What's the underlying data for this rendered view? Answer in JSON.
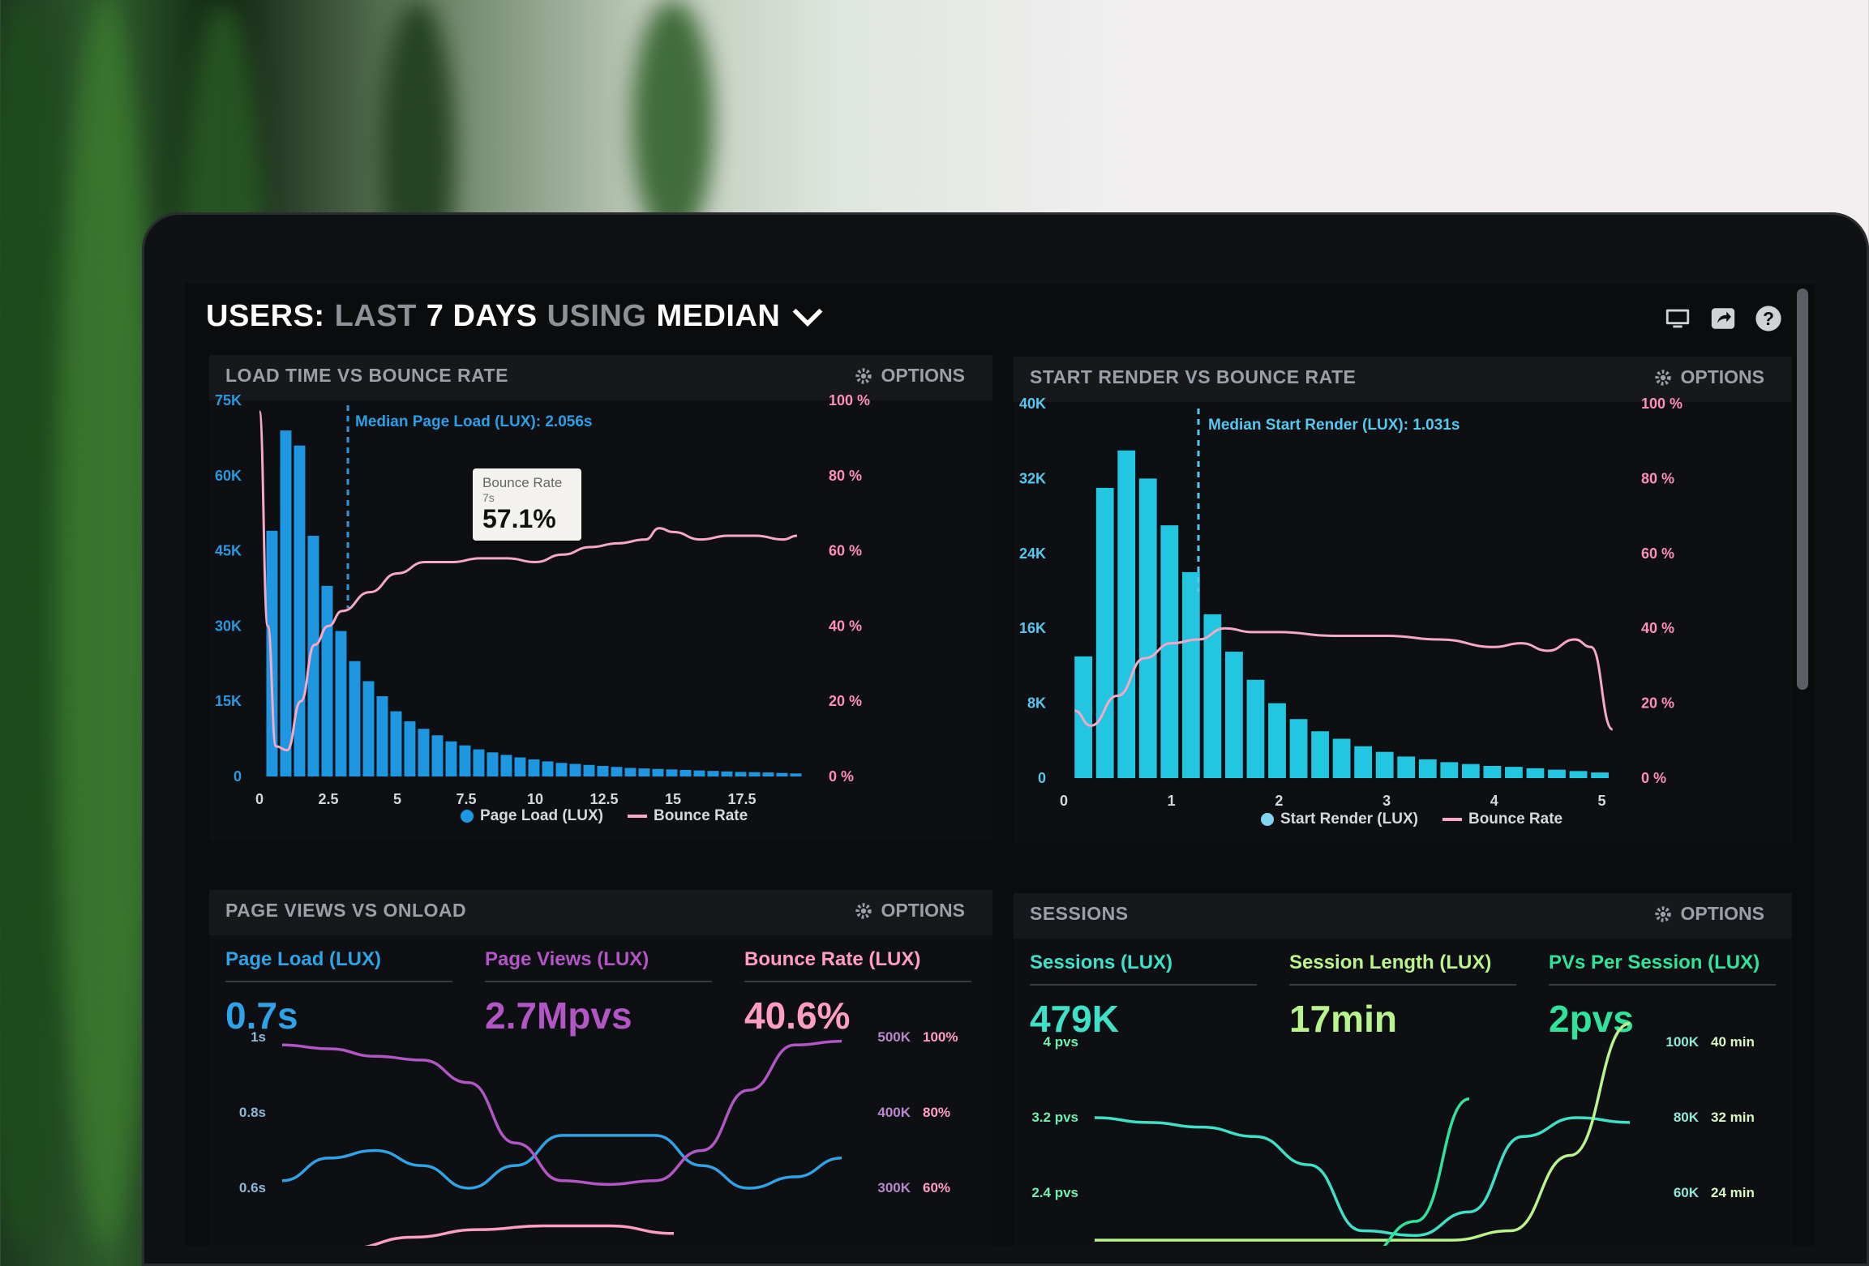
{
  "dashboard": {
    "title_parts": [
      "USERS:",
      "LAST",
      "7 DAYS",
      "USING",
      "MEDIAN"
    ],
    "icons": [
      "monitor-icon",
      "share-icon",
      "help-icon"
    ]
  },
  "panels": {
    "load_bounce": {
      "title": "LOAD TIME VS BOUNCE RATE",
      "options_label": "OPTIONS",
      "median_label": "Median Page Load (LUX): 2.056s",
      "tooltip": {
        "title": "Bounce Rate",
        "sub": "7s",
        "value": "57.1%"
      },
      "legend": [
        "Page Load (LUX)",
        "Bounce Rate"
      ]
    },
    "render_bounce": {
      "title": "START RENDER VS BOUNCE RATE",
      "options_label": "OPTIONS",
      "median_label": "Median Start Render (LUX): 1.031s",
      "legend": [
        "Start Render (LUX)",
        "Bounce Rate"
      ]
    },
    "pageviews_onload": {
      "title": "PAGE VIEWS VS ONLOAD",
      "options_label": "OPTIONS",
      "stats": [
        {
          "label": "Page Load (LUX)",
          "value": "0.7s",
          "color": "#2fa3e6"
        },
        {
          "label": "Page Views (LUX)",
          "value": "2.7Mpvs",
          "color": "#b156c4"
        },
        {
          "label": "Bounce Rate (LUX)",
          "value": "40.6%",
          "color": "#ff9ec2"
        }
      ]
    },
    "sessions": {
      "title": "SESSIONS",
      "options_label": "OPTIONS",
      "stats": [
        {
          "label": "Sessions (LUX)",
          "value": "479K",
          "color": "#3fe0c8"
        },
        {
          "label": "Session Length (LUX)",
          "value": "17min",
          "color": "#b9f58c"
        },
        {
          "label": "PVs Per Session (LUX)",
          "value": "2pvs",
          "color": "#2fe39a"
        }
      ]
    }
  },
  "chart_data": [
    {
      "type": "bar",
      "title": "LOAD TIME VS BOUNCE RATE",
      "x_ticks": [
        "0",
        "2.5",
        "5",
        "7.5",
        "10",
        "12.5",
        "15",
        "17.5"
      ],
      "y_ticks_left": [
        "75K",
        "60K",
        "45K",
        "30K",
        "15K",
        "0"
      ],
      "y_ticks_right": [
        "100 %",
        "80 %",
        "60 %",
        "40 %",
        "20 %",
        "0 %"
      ],
      "xlim": [
        0,
        20
      ],
      "ylim_left": [
        0,
        75000
      ],
      "ylim_right": [
        0,
        100
      ],
      "series": [
        {
          "name": "Page Load (LUX)",
          "color": "#1e96e0",
          "kind": "bar",
          "x": [
            0.5,
            1,
            1.5,
            2,
            2.5,
            3,
            3.5,
            4,
            4.5,
            5,
            5.5,
            6,
            6.5,
            7,
            7.5,
            8,
            8.5,
            9,
            9.5,
            10,
            10.5,
            11,
            11.5,
            12,
            12.5,
            13,
            13.5,
            14,
            14.5,
            15,
            15.5,
            16,
            16.5,
            17,
            17.5,
            18,
            18.5,
            19,
            19.5
          ],
          "values": [
            49000,
            69000,
            66000,
            48000,
            38000,
            29000,
            23000,
            19000,
            16000,
            13000,
            11000,
            9500,
            8200,
            7000,
            6200,
            5400,
            4800,
            4300,
            3800,
            3400,
            3000,
            2700,
            2500,
            2300,
            2100,
            1900,
            1700,
            1600,
            1500,
            1400,
            1300,
            1200,
            1100,
            1000,
            900,
            850,
            800,
            700,
            600
          ]
        },
        {
          "name": "Bounce Rate",
          "color": "#f6a8c4",
          "kind": "line",
          "x": [
            0,
            0.3,
            0.6,
            1,
            1.5,
            2,
            2.5,
            3,
            4,
            5,
            6,
            7,
            8,
            9,
            10,
            11,
            12,
            13,
            14,
            14.5,
            15,
            16,
            17,
            18,
            19,
            19.5
          ],
          "values": [
            97,
            40,
            8,
            7,
            20,
            35,
            40,
            44,
            49,
            54,
            57,
            57,
            58,
            58,
            57,
            59,
            61,
            62,
            63,
            66,
            65,
            63,
            64,
            64,
            63,
            64
          ]
        }
      ]
    },
    {
      "type": "bar",
      "title": "START RENDER VS BOUNCE RATE",
      "x_ticks": [
        "0",
        "1",
        "2",
        "3",
        "4",
        "5"
      ],
      "y_ticks_left": [
        "40K",
        "32K",
        "24K",
        "16K",
        "8K",
        "0"
      ],
      "y_ticks_right": [
        "100 %",
        "80 %",
        "60 %",
        "40 %",
        "20 %",
        "0 %"
      ],
      "xlim": [
        0,
        5.2
      ],
      "ylim_left": [
        0,
        40000
      ],
      "ylim_right": [
        0,
        100
      ],
      "series": [
        {
          "name": "Start Render (LUX)",
          "color": "#22c6e0",
          "kind": "bar",
          "x": [
            0.2,
            0.4,
            0.6,
            0.8,
            1,
            1.2,
            1.4,
            1.6,
            1.8,
            2,
            2.2,
            2.4,
            2.6,
            2.8,
            3,
            3.2,
            3.4,
            3.6,
            3.8,
            4,
            4.2,
            4.4,
            4.6,
            4.8,
            5
          ],
          "values": [
            13000,
            31000,
            35000,
            32000,
            27000,
            22000,
            17500,
            13500,
            10500,
            8000,
            6300,
            5000,
            4200,
            3400,
            2800,
            2300,
            2000,
            1700,
            1500,
            1300,
            1200,
            1050,
            900,
            750,
            600
          ]
        },
        {
          "name": "Bounce Rate",
          "color": "#f6a8c4",
          "kind": "line",
          "x": [
            0.1,
            0.25,
            0.5,
            0.75,
            1,
            1.25,
            1.5,
            1.75,
            2,
            2.5,
            3,
            3.5,
            4,
            4.25,
            4.5,
            4.75,
            4.9,
            5.1
          ],
          "values": [
            18,
            14,
            22,
            32,
            36,
            37,
            40,
            39,
            39,
            38,
            38,
            37,
            35,
            36,
            34,
            37,
            35,
            13
          ]
        }
      ]
    },
    {
      "type": "line",
      "title": "PAGE VIEWS VS ONLOAD",
      "y_ticks_left": [
        "1s",
        "0.8s",
        "0.6s"
      ],
      "y_ticks_right_a": [
        "500K",
        "400K",
        "300K"
      ],
      "y_ticks_right_b": [
        "100%",
        "80%",
        "60%"
      ],
      "series": [
        {
          "name": "Page Load (LUX)",
          "color": "#2fa3e6",
          "values": [
            0.62,
            0.68,
            0.7,
            0.66,
            0.6,
            0.66,
            0.74,
            0.74,
            0.74,
            0.66,
            0.6,
            0.63,
            0.68
          ]
        },
        {
          "name": "Page Views (LUX)",
          "color": "#b156c4",
          "values": [
            490,
            485,
            475,
            470,
            440,
            360,
            310,
            305,
            310,
            350,
            430,
            490,
            495
          ]
        },
        {
          "name": "Bounce Rate (LUX)",
          "color": "#ff9ec2",
          "values": [
            42,
            44,
            47,
            49,
            50,
            50,
            48
          ]
        }
      ]
    },
    {
      "type": "line",
      "title": "SESSIONS",
      "y_ticks_left": [
        "4 pvs",
        "3.2 pvs",
        "2.4 pvs"
      ],
      "y_ticks_right_a": [
        "100K",
        "80K",
        "60K"
      ],
      "y_ticks_right_b": [
        "40 min",
        "32 min",
        "24 min"
      ],
      "series": [
        {
          "name": "Sessions (LUX)",
          "color": "#3fe0c8",
          "values": [
            3.2,
            3.15,
            3.1,
            3.0,
            2.7,
            2.0,
            1.95,
            2.2,
            3.0,
            3.2,
            3.15
          ]
        },
        {
          "name": "Session Length (LUX)",
          "color": "#b9f58c",
          "values": [
            19,
            19,
            19,
            19,
            19,
            19,
            19,
            20,
            28,
            42
          ]
        },
        {
          "name": "PVs Per Session (LUX)",
          "color": "#2fe39a",
          "values": [
            1.5,
            1.8,
            1.8,
            1.7,
            1.6,
            1.7,
            2.1,
            3.4
          ]
        }
      ]
    }
  ]
}
